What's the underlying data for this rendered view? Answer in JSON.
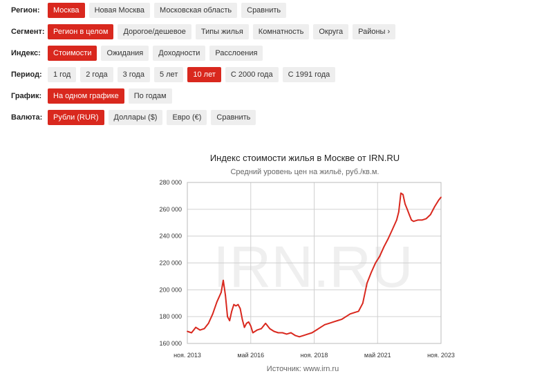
{
  "filters": {
    "rows": [
      {
        "label": "Регион:",
        "options": [
          {
            "text": "Москва",
            "active": true
          },
          {
            "text": "Новая Москва",
            "active": false
          },
          {
            "text": "Московская область",
            "active": false
          },
          {
            "text": "Сравнить",
            "active": false
          }
        ]
      },
      {
        "label": "Сегмент:",
        "options": [
          {
            "text": "Регион в целом",
            "active": true
          },
          {
            "text": "Дорогое/дешевое",
            "active": false
          },
          {
            "text": "Типы жилья",
            "active": false
          },
          {
            "text": "Комнатность",
            "active": false
          },
          {
            "text": "Округа",
            "active": false
          },
          {
            "text": "Районы",
            "active": false,
            "icon": "chevron-right-icon"
          }
        ]
      },
      {
        "label": "Индекс:",
        "options": [
          {
            "text": "Стоимости",
            "active": true
          },
          {
            "text": "Ожидания",
            "active": false
          },
          {
            "text": "Доходности",
            "active": false
          },
          {
            "text": "Расслоения",
            "active": false
          }
        ]
      },
      {
        "label": "Период:",
        "options": [
          {
            "text": "1 год",
            "active": false
          },
          {
            "text": "2 года",
            "active": false
          },
          {
            "text": "3 года",
            "active": false
          },
          {
            "text": "5 лет",
            "active": false
          },
          {
            "text": "10 лет",
            "active": true
          },
          {
            "text": "С 2000 года",
            "active": false
          },
          {
            "text": "С 1991 года",
            "active": false
          }
        ]
      },
      {
        "label": "График:",
        "options": [
          {
            "text": "На одном графике",
            "active": true
          },
          {
            "text": "По годам",
            "active": false
          }
        ]
      },
      {
        "label": "Валюта:",
        "options": [
          {
            "text": "Рубли (RUR)",
            "active": true
          },
          {
            "text": "Доллары ($)",
            "active": false
          },
          {
            "text": "Евро (€)",
            "active": false
          },
          {
            "text": "Сравнить",
            "active": false
          }
        ]
      }
    ]
  },
  "colors": {
    "accent": "#d9281e",
    "button_bg": "#eeeeee",
    "line": "#d9281e",
    "grid": "#cccccc",
    "watermark": "#efefef"
  },
  "chart_data": {
    "type": "line",
    "title": "Индекс стоимости жилья в Москве от IRN.RU",
    "subtitle": "Средний уровень цен на жильё, руб./кв.м.",
    "source": "Источник: www.irn.ru",
    "watermark": "IRN.RU",
    "xlabel": "",
    "ylabel": "",
    "ylim": [
      160000,
      280000
    ],
    "xlim": [
      "2013-11",
      "2023-11"
    ],
    "y_ticks": [
      {
        "value": 160000,
        "label": "160 000"
      },
      {
        "value": 180000,
        "label": "180 000"
      },
      {
        "value": 200000,
        "label": "200 000"
      },
      {
        "value": 220000,
        "label": "220 000"
      },
      {
        "value": 240000,
        "label": "240 000"
      },
      {
        "value": 260000,
        "label": "260 000"
      },
      {
        "value": 280000,
        "label": "280 000"
      }
    ],
    "x_ticks": [
      {
        "date": "2013-11",
        "label": "ноя. 2013"
      },
      {
        "date": "2016-05",
        "label": "май 2016"
      },
      {
        "date": "2018-11",
        "label": "ноя. 2018"
      },
      {
        "date": "2021-05",
        "label": "май 2021"
      },
      {
        "date": "2023-11",
        "label": "ноя. 2023"
      }
    ],
    "grid": true,
    "series": [
      {
        "data": [
          [
            "2013-11",
            169000
          ],
          [
            "2014-01",
            168000
          ],
          [
            "2014-03",
            172000
          ],
          [
            "2014-05",
            170000
          ],
          [
            "2014-07",
            171000
          ],
          [
            "2014-09",
            175000
          ],
          [
            "2014-11",
            182000
          ],
          [
            "2015-01",
            191000
          ],
          [
            "2015-03",
            198000
          ],
          [
            "2015-04",
            207000
          ],
          [
            "2015-05",
            196000
          ],
          [
            "2015-06",
            180000
          ],
          [
            "2015-07",
            177000
          ],
          [
            "2015-08",
            184000
          ],
          [
            "2015-09",
            189000
          ],
          [
            "2015-10",
            188000
          ],
          [
            "2015-11",
            189000
          ],
          [
            "2015-12",
            186000
          ],
          [
            "2016-01",
            178000
          ],
          [
            "2016-02",
            172000
          ],
          [
            "2016-03",
            175000
          ],
          [
            "2016-04",
            176000
          ],
          [
            "2016-05",
            173000
          ],
          [
            "2016-06",
            168000
          ],
          [
            "2016-08",
            170000
          ],
          [
            "2016-10",
            171000
          ],
          [
            "2016-12",
            175000
          ],
          [
            "2017-02",
            171000
          ],
          [
            "2017-04",
            169000
          ],
          [
            "2017-06",
            168000
          ],
          [
            "2017-08",
            168000
          ],
          [
            "2017-10",
            167000
          ],
          [
            "2017-12",
            168000
          ],
          [
            "2018-02",
            166000
          ],
          [
            "2018-04",
            165000
          ],
          [
            "2018-06",
            166000
          ],
          [
            "2018-08",
            167000
          ],
          [
            "2018-10",
            168000
          ],
          [
            "2018-12",
            170000
          ],
          [
            "2019-02",
            172000
          ],
          [
            "2019-04",
            174000
          ],
          [
            "2019-06",
            175000
          ],
          [
            "2019-08",
            176000
          ],
          [
            "2019-10",
            177000
          ],
          [
            "2019-12",
            178000
          ],
          [
            "2020-02",
            180000
          ],
          [
            "2020-04",
            182000
          ],
          [
            "2020-06",
            183000
          ],
          [
            "2020-08",
            184000
          ],
          [
            "2020-10",
            190000
          ],
          [
            "2020-12",
            205000
          ],
          [
            "2021-02",
            213000
          ],
          [
            "2021-04",
            220000
          ],
          [
            "2021-06",
            225000
          ],
          [
            "2021-08",
            232000
          ],
          [
            "2021-10",
            238000
          ],
          [
            "2021-12",
            245000
          ],
          [
            "2022-02",
            252000
          ],
          [
            "2022-03",
            258000
          ],
          [
            "2022-04",
            272000
          ],
          [
            "2022-05",
            271000
          ],
          [
            "2022-06",
            264000
          ],
          [
            "2022-07",
            260000
          ],
          [
            "2022-08",
            256000
          ],
          [
            "2022-09",
            252000
          ],
          [
            "2022-10",
            251000
          ],
          [
            "2022-12",
            252000
          ],
          [
            "2023-02",
            252000
          ],
          [
            "2023-04",
            253000
          ],
          [
            "2023-06",
            256000
          ],
          [
            "2023-08",
            262000
          ],
          [
            "2023-10",
            267000
          ],
          [
            "2023-11",
            269000
          ]
        ]
      }
    ]
  }
}
